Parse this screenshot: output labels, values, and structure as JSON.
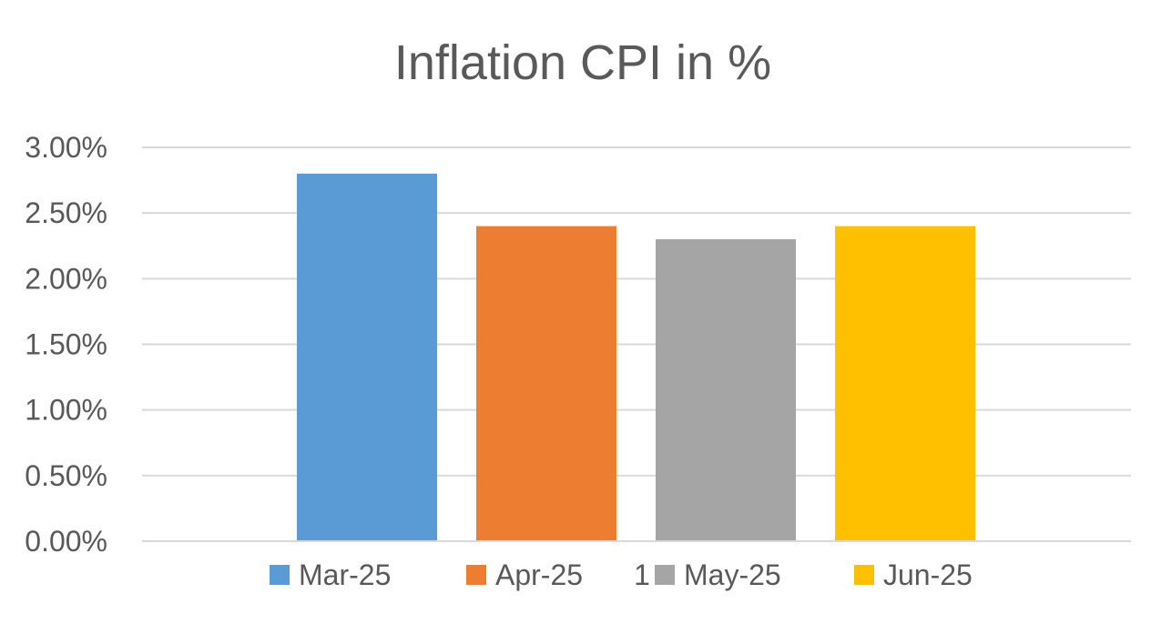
{
  "chart_data": {
    "type": "bar",
    "title": "Inflation CPI in %",
    "xlabel": "",
    "ylabel": "",
    "categories": [
      "1"
    ],
    "series": [
      {
        "name": "Mar-25",
        "values": [
          0.028
        ],
        "color": "#5b9bd5"
      },
      {
        "name": "Apr-25",
        "values": [
          0.024
        ],
        "color": "#ed7d31"
      },
      {
        "name": "May-25",
        "values": [
          0.023
        ],
        "color": "#a5a5a5"
      },
      {
        "name": "Jun-25",
        "values": [
          0.024
        ],
        "color": "#ffc000"
      }
    ],
    "ylim": [
      0,
      0.03
    ],
    "y_ticks": [
      "0.00%",
      "0.50%",
      "1.00%",
      "1.50%",
      "2.00%",
      "2.50%",
      "3.00%"
    ],
    "grid": true,
    "legend_position": "bottom"
  }
}
